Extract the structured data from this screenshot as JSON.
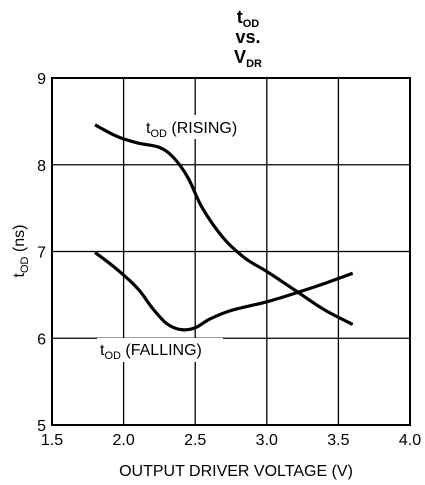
{
  "chart_data": {
    "type": "line",
    "title": {
      "main": "t",
      "main_sub": "OD",
      "line2": "vs.",
      "line3": "V",
      "line3_sub": "DR"
    },
    "xlabel": "OUTPUT DRIVER VOLTAGE (V)",
    "ylabel": {
      "main": "t",
      "sub": "OD",
      "rest": " (ns)"
    },
    "xlim": [
      1.5,
      4.0
    ],
    "ylim": [
      5,
      9
    ],
    "xticks": [
      "1.5",
      "2.0",
      "2.5",
      "3.0",
      "3.5",
      "4.0"
    ],
    "yticks": [
      "5",
      "6",
      "7",
      "8",
      "9"
    ],
    "grid": true,
    "series": [
      {
        "name": "RISING",
        "label": {
          "main": "t",
          "sub": "OD",
          "rest": " (RISING)"
        },
        "x": [
          1.8,
          1.95,
          2.1,
          2.25,
          2.35,
          2.45,
          2.55,
          2.7,
          2.85,
          3.0,
          3.2,
          3.4,
          3.6
        ],
        "y": [
          8.46,
          8.33,
          8.25,
          8.2,
          8.08,
          7.85,
          7.5,
          7.15,
          6.92,
          6.77,
          6.55,
          6.33,
          6.16
        ]
      },
      {
        "name": "FALLING",
        "label": {
          "main": "t",
          "sub": "OD",
          "rest": " (FALLING)"
        },
        "x": [
          1.8,
          1.95,
          2.1,
          2.2,
          2.3,
          2.4,
          2.5,
          2.6,
          2.75,
          3.0,
          3.2,
          3.4,
          3.6
        ],
        "y": [
          6.99,
          6.8,
          6.57,
          6.35,
          6.17,
          6.1,
          6.12,
          6.22,
          6.32,
          6.42,
          6.52,
          6.63,
          6.75
        ]
      }
    ]
  }
}
